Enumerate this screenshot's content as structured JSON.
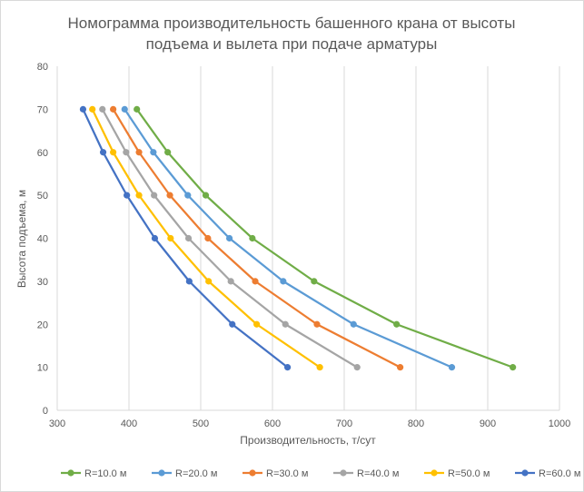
{
  "chart_data": {
    "type": "line",
    "title_line1": "Номограмма производительность башенного крана от высоты",
    "title_line2": "подъема и вылета при подаче арматуры",
    "xlabel": "Производительность, т/сут",
    "ylabel": "Высота подъема, м",
    "xlim": [
      300,
      1000
    ],
    "ylim": [
      0,
      80
    ],
    "x_ticks": [
      300,
      400,
      500,
      600,
      700,
      800,
      900,
      1000
    ],
    "y_ticks": [
      0,
      10,
      20,
      30,
      40,
      50,
      60,
      70,
      80
    ],
    "grid": "vertical",
    "legend_position": "bottom",
    "series": [
      {
        "name": "R=10.0 м",
        "color": "#70ad47",
        "points": [
          [
            935,
            10
          ],
          [
            773,
            20
          ],
          [
            658,
            30
          ],
          [
            572,
            40
          ],
          [
            507,
            50
          ],
          [
            454,
            60
          ],
          [
            411,
            70
          ]
        ]
      },
      {
        "name": "R=20.0 м",
        "color": "#5b9bd5",
        "points": [
          [
            850,
            10
          ],
          [
            713,
            20
          ],
          [
            615,
            30
          ],
          [
            540,
            40
          ],
          [
            482,
            50
          ],
          [
            434,
            60
          ],
          [
            394,
            70
          ]
        ]
      },
      {
        "name": "R=30.0 м",
        "color": "#ed7d31",
        "points": [
          [
            778,
            10
          ],
          [
            662,
            20
          ],
          [
            576,
            30
          ],
          [
            510,
            40
          ],
          [
            457,
            50
          ],
          [
            414,
            60
          ],
          [
            378,
            70
          ]
        ]
      },
      {
        "name": "R=40.0 м",
        "color": "#a5a5a5",
        "points": [
          [
            718,
            10
          ],
          [
            618,
            20
          ],
          [
            542,
            30
          ],
          [
            483,
            40
          ],
          [
            435,
            50
          ],
          [
            396,
            60
          ],
          [
            363,
            70
          ]
        ]
      },
      {
        "name": "R=50.0 м",
        "color": "#ffc000",
        "points": [
          [
            666,
            10
          ],
          [
            578,
            20
          ],
          [
            511,
            30
          ],
          [
            458,
            40
          ],
          [
            414,
            50
          ],
          [
            378,
            60
          ],
          [
            349,
            70
          ]
        ]
      },
      {
        "name": "R=60.0 м",
        "color": "#4472c4",
        "points": [
          [
            621,
            10
          ],
          [
            544,
            20
          ],
          [
            484,
            30
          ],
          [
            436,
            40
          ],
          [
            397,
            50
          ],
          [
            364,
            60
          ],
          [
            336,
            70
          ]
        ]
      }
    ]
  }
}
